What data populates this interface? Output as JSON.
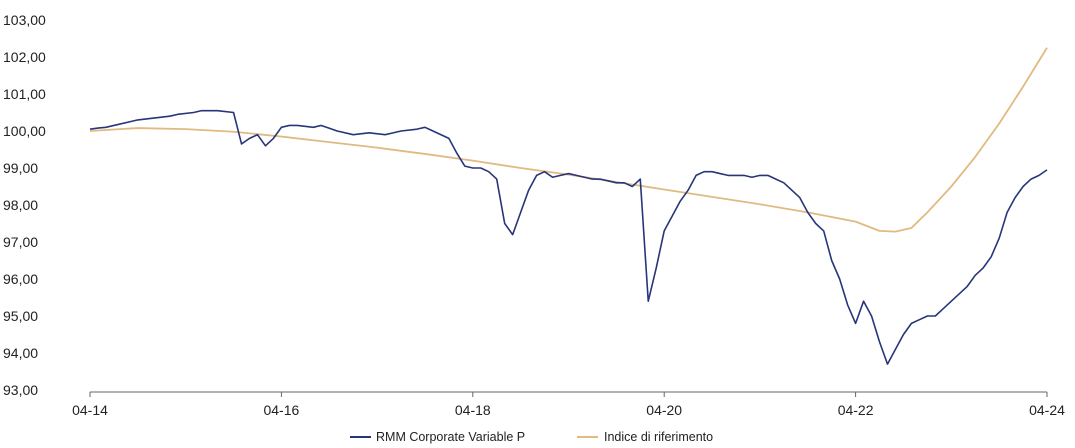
{
  "chart_data": {
    "type": "line",
    "title": "",
    "xlabel": "",
    "ylabel": "",
    "ylim": [
      93,
      103
    ],
    "xlim": [
      "2014-04",
      "2024-04"
    ],
    "y_ticks": [
      "93,00",
      "94,00",
      "95,00",
      "96,00",
      "97,00",
      "98,00",
      "99,00",
      "100,00",
      "101,00",
      "102,00",
      "103,00"
    ],
    "x_ticks": [
      {
        "x": "2014-04",
        "label": "04-14"
      },
      {
        "x": "2016-04",
        "label": "04-16"
      },
      {
        "x": "2018-04",
        "label": "04-18"
      },
      {
        "x": "2020-04",
        "label": "04-20"
      },
      {
        "x": "2022-04",
        "label": "04-22"
      },
      {
        "x": "2024-04",
        "label": "04-24"
      }
    ],
    "grid": false,
    "legend_position": "bottom-center",
    "series": [
      {
        "name": "RMM Corporate Variable P",
        "color": "#27357a",
        "x": [
          "2014-04",
          "2014-05",
          "2014-06",
          "2014-07",
          "2014-09",
          "2014-10",
          "2014-12",
          "2015-02",
          "2015-03",
          "2015-05",
          "2015-06",
          "2015-08",
          "2015-10",
          "2015-11",
          "2015-12",
          "2016-01",
          "2016-02",
          "2016-03",
          "2016-04",
          "2016-05",
          "2016-06",
          "2016-08",
          "2016-09",
          "2016-11",
          "2017-01",
          "2017-03",
          "2017-05",
          "2017-06",
          "2017-07",
          "2017-09",
          "2017-10",
          "2017-11",
          "2018-01",
          "2018-02",
          "2018-03",
          "2018-04",
          "2018-05",
          "2018-06",
          "2018-07",
          "2018-08",
          "2018-09",
          "2018-10",
          "2018-11",
          "2018-12",
          "2019-01",
          "2019-02",
          "2019-03",
          "2019-04",
          "2019-05",
          "2019-06",
          "2019-07",
          "2019-08",
          "2019-09",
          "2019-10",
          "2019-11",
          "2019-12",
          "2020-01",
          "2020-02",
          "2020-03",
          "2020-04",
          "2020-05",
          "2020-06",
          "2020-07",
          "2020-08",
          "2020-09",
          "2020-10",
          "2020-11",
          "2020-12",
          "2021-01",
          "2021-02",
          "2021-03",
          "2021-04",
          "2021-05",
          "2021-06",
          "2021-07",
          "2021-08",
          "2021-09",
          "2021-10",
          "2021-11",
          "2021-12",
          "2022-01",
          "2022-02",
          "2022-03",
          "2022-04",
          "2022-05",
          "2022-06",
          "2022-07",
          "2022-08",
          "2022-09",
          "2022-10",
          "2022-11",
          "2022-12",
          "2023-01",
          "2023-02",
          "2023-03",
          "2023-04",
          "2023-05",
          "2023-06",
          "2023-07",
          "2023-08",
          "2023-09",
          "2023-10",
          "2023-11",
          "2023-12",
          "2024-01",
          "2024-02",
          "2024-03",
          "2024-04"
        ],
        "values": [
          100.05,
          100.08,
          100.1,
          100.15,
          100.25,
          100.3,
          100.35,
          100.4,
          100.45,
          100.5,
          100.55,
          100.55,
          100.5,
          99.65,
          99.8,
          99.9,
          99.6,
          99.8,
          100.1,
          100.15,
          100.15,
          100.1,
          100.15,
          100.0,
          99.9,
          99.95,
          99.9,
          99.95,
          100.0,
          100.05,
          100.1,
          100.0,
          99.8,
          99.4,
          99.05,
          99.0,
          99.0,
          98.9,
          98.7,
          97.5,
          97.2,
          97.8,
          98.4,
          98.8,
          98.9,
          98.75,
          98.8,
          98.85,
          98.8,
          98.75,
          98.7,
          98.7,
          98.65,
          98.6,
          98.6,
          98.5,
          98.7,
          95.4,
          96.3,
          97.3,
          97.7,
          98.1,
          98.4,
          98.8,
          98.9,
          98.9,
          98.85,
          98.8,
          98.8,
          98.8,
          98.75,
          98.8,
          98.8,
          98.7,
          98.6,
          98.4,
          98.2,
          97.8,
          97.5,
          97.3,
          96.5,
          96.0,
          95.3,
          94.8,
          95.4,
          95.0,
          94.3,
          93.7,
          94.1,
          94.5,
          94.8,
          94.9,
          95.0,
          95.0,
          95.2,
          95.4,
          95.6,
          95.8,
          96.1,
          96.3,
          96.6,
          97.1,
          97.8,
          98.2,
          98.5,
          98.7,
          98.8,
          98.95
        ]
      },
      {
        "name": "Indice di riferimento",
        "color": "#e0ba82",
        "x": [
          "2014-04",
          "2014-10",
          "2015-04",
          "2015-10",
          "2016-04",
          "2016-10",
          "2017-04",
          "2017-10",
          "2018-04",
          "2018-10",
          "2019-04",
          "2019-10",
          "2020-04",
          "2020-10",
          "2021-04",
          "2021-10",
          "2022-04",
          "2022-07",
          "2022-09",
          "2022-11",
          "2023-01",
          "2023-04",
          "2023-07",
          "2023-10",
          "2024-01",
          "2024-04"
        ],
        "values": [
          100.0,
          100.08,
          100.05,
          99.98,
          99.85,
          99.7,
          99.55,
          99.38,
          99.2,
          99.0,
          98.82,
          98.62,
          98.42,
          98.22,
          98.02,
          97.8,
          97.55,
          97.3,
          97.28,
          97.38,
          97.8,
          98.5,
          99.3,
          100.2,
          101.2,
          102.25
        ]
      }
    ]
  }
}
